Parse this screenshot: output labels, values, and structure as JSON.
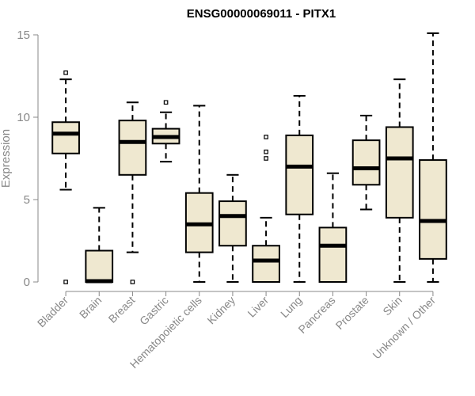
{
  "chart_data": {
    "type": "boxplot",
    "title": "ENSG00000069011 - PITX1",
    "xlabel": "",
    "ylabel": "Expression",
    "ylim": [
      0,
      15
    ],
    "yticks": [
      0,
      5,
      10,
      15
    ],
    "box_fill": "#efe8d0",
    "line_color": "#000000",
    "axis_color": "#888888",
    "categories": [
      "Bladder",
      "Brain",
      "Breast",
      "Gastric",
      "Hematopoietic cells",
      "Kidney",
      "Liver",
      "Lung",
      "Pancreas",
      "Prostate",
      "Skin",
      "Unknown / Other"
    ],
    "boxes": [
      {
        "name": "Bladder",
        "whisker_low": 5.6,
        "q1": 7.8,
        "median": 9.0,
        "q3": 9.7,
        "whisker_high": 12.3,
        "outliers": [
          12.7,
          0.0
        ]
      },
      {
        "name": "Brain",
        "whisker_low": 0.0,
        "q1": 0.0,
        "median": 0.05,
        "q3": 1.9,
        "whisker_high": 4.5,
        "outliers": []
      },
      {
        "name": "Breast",
        "whisker_low": 1.8,
        "q1": 6.5,
        "median": 8.5,
        "q3": 9.8,
        "whisker_high": 10.9,
        "outliers": [
          0.0
        ]
      },
      {
        "name": "Gastric",
        "whisker_low": 7.3,
        "q1": 8.4,
        "median": 8.8,
        "q3": 9.3,
        "whisker_high": 10.3,
        "outliers": [
          10.9
        ]
      },
      {
        "name": "Hematopoietic cells",
        "whisker_low": 0.0,
        "q1": 1.8,
        "median": 3.5,
        "q3": 5.4,
        "whisker_high": 10.7,
        "outliers": []
      },
      {
        "name": "Kidney",
        "whisker_low": 0.0,
        "q1": 2.2,
        "median": 4.0,
        "q3": 4.9,
        "whisker_high": 6.5,
        "outliers": []
      },
      {
        "name": "Liver",
        "whisker_low": 0.0,
        "q1": 0.0,
        "median": 1.3,
        "q3": 2.2,
        "whisker_high": 3.9,
        "outliers": [
          7.5,
          7.9,
          8.8
        ]
      },
      {
        "name": "Lung",
        "whisker_low": 0.0,
        "q1": 4.1,
        "median": 7.0,
        "q3": 8.9,
        "whisker_high": 11.3,
        "outliers": []
      },
      {
        "name": "Pancreas",
        "whisker_low": 0.0,
        "q1": 0.0,
        "median": 2.2,
        "q3": 3.3,
        "whisker_high": 6.6,
        "outliers": []
      },
      {
        "name": "Prostate",
        "whisker_low": 4.4,
        "q1": 5.9,
        "median": 6.9,
        "q3": 8.6,
        "whisker_high": 10.1,
        "outliers": []
      },
      {
        "name": "Skin",
        "whisker_low": 0.0,
        "q1": 3.9,
        "median": 7.5,
        "q3": 9.4,
        "whisker_high": 12.3,
        "outliers": []
      },
      {
        "name": "Unknown / Other",
        "whisker_low": 0.0,
        "q1": 1.4,
        "median": 3.7,
        "q3": 7.4,
        "whisker_high": 15.1,
        "outliers": []
      }
    ]
  }
}
